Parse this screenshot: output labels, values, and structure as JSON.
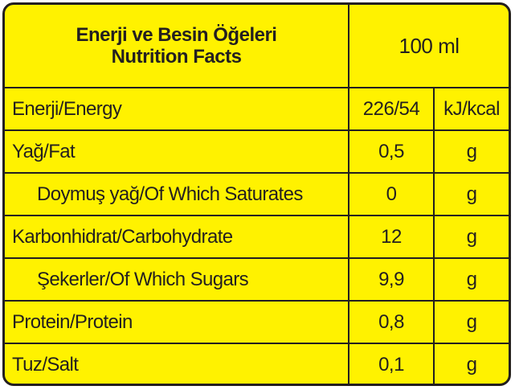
{
  "header": {
    "title_tr": "Enerji ve Besin Öğeleri",
    "title_en": "Nutrition Facts",
    "serving": "100 ml"
  },
  "rows": [
    {
      "name": "Enerji/Energy",
      "value": "226/54",
      "unit": "kJ/kcal"
    },
    {
      "name": "Yağ/Fat",
      "value": "0,5",
      "unit": "g"
    },
    {
      "name": "Doymuş yağ/Of Which Saturates",
      "value": "0",
      "unit": "g"
    },
    {
      "name": "Karbonhidrat/Carbohydrate",
      "value": "12",
      "unit": "g"
    },
    {
      "name": "Şekerler/Of Which Sugars",
      "value": "9,9",
      "unit": "g"
    },
    {
      "name": "Protein/Protein",
      "value": "0,8",
      "unit": "g"
    },
    {
      "name": "Tuz/Salt",
      "value": "0,1",
      "unit": "g"
    }
  ],
  "colors": {
    "background": "#fff200",
    "ink": "#231f20"
  }
}
